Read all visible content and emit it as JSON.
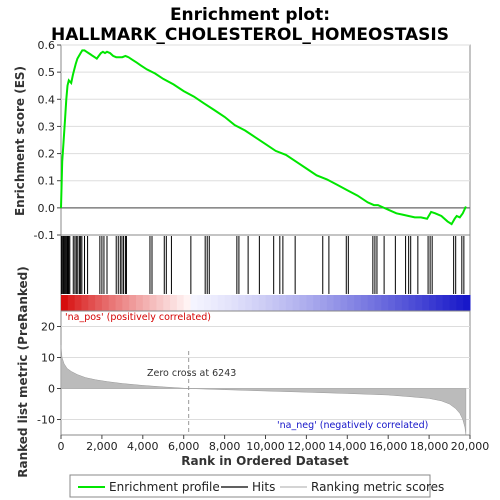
{
  "chart_data": {
    "type": "line",
    "title_line1": "Enrichment plot:",
    "title_line2": "HALLMARK_CHOLESTEROL_HOMEOSTASIS",
    "es_panel": {
      "ylabel": "Enrichment score (ES)",
      "ylim": [
        -0.1,
        0.6
      ],
      "yticks": [
        "-0.1",
        "0.0",
        "0.1",
        "0.2",
        "0.3",
        "0.4",
        "0.5",
        "0.6"
      ],
      "ytick_values": [
        -0.1,
        0.0,
        0.1,
        0.2,
        0.3,
        0.4,
        0.5,
        0.6
      ],
      "series": [
        {
          "name": "Enrichment profile",
          "color": "#00e600",
          "x": [
            0,
            60,
            120,
            200,
            260,
            320,
            380,
            500,
            580,
            650,
            720,
            800,
            880,
            960,
            1040,
            1150,
            1250,
            1350,
            1450,
            1550,
            1650,
            1750,
            1850,
            1950,
            2050,
            2150,
            2250,
            2400,
            2550,
            2700,
            2850,
            3000,
            3150,
            3300,
            3500,
            3700,
            3900,
            4200,
            4600,
            5000,
            5500,
            6000,
            6500,
            7000,
            7500,
            8000,
            8500,
            9000,
            9500,
            10000,
            10500,
            11000,
            11500,
            12000,
            12500,
            13000,
            13500,
            14000,
            14500,
            15000,
            15300,
            15500,
            15800,
            16100,
            16400,
            16700,
            17000,
            17300,
            17600,
            17900,
            18100,
            18300,
            18600,
            18900,
            19100,
            19250,
            19350,
            19500,
            19650,
            19800
          ],
          "y": [
            0.0,
            0.17,
            0.24,
            0.33,
            0.4,
            0.45,
            0.47,
            0.46,
            0.49,
            0.51,
            0.53,
            0.55,
            0.56,
            0.57,
            0.58,
            0.58,
            0.575,
            0.57,
            0.565,
            0.56,
            0.555,
            0.55,
            0.56,
            0.57,
            0.575,
            0.57,
            0.575,
            0.57,
            0.56,
            0.555,
            0.555,
            0.555,
            0.56,
            0.555,
            0.545,
            0.535,
            0.525,
            0.51,
            0.495,
            0.475,
            0.455,
            0.43,
            0.41,
            0.385,
            0.36,
            0.335,
            0.305,
            0.285,
            0.26,
            0.235,
            0.21,
            0.195,
            0.17,
            0.145,
            0.12,
            0.105,
            0.085,
            0.065,
            0.045,
            0.02,
            0.01,
            0.01,
            0.0,
            -0.01,
            -0.02,
            -0.025,
            -0.03,
            -0.035,
            -0.035,
            -0.04,
            -0.015,
            -0.02,
            -0.03,
            -0.05,
            -0.06,
            -0.04,
            -0.03,
            -0.035,
            -0.02,
            0.005
          ]
        }
      ]
    },
    "hits": {
      "name": "Hits",
      "positions": [
        20,
        60,
        110,
        150,
        200,
        250,
        300,
        340,
        380,
        430,
        600,
        680,
        750,
        820,
        900,
        960,
        1020,
        1150,
        1300,
        1900,
        2000,
        2100,
        2250,
        2700,
        2800,
        2900,
        2980,
        3060,
        3150,
        3200,
        4350,
        4450,
        5050,
        5150,
        5400,
        6350,
        7050,
        7150,
        7250,
        8600,
        8700,
        9150,
        9700,
        10400,
        10700,
        10850,
        11450,
        12800,
        13100,
        13950,
        14050,
        15250,
        15350,
        15450,
        15800,
        16350,
        16850,
        17000,
        17100,
        17450,
        17950,
        18050,
        18150,
        19200,
        19300,
        19600,
        19700
      ]
    },
    "ranking_bar": {
      "pos_label": "'na_pos' (positively correlated)",
      "neg_label": "'na_neg' (negatively correlated)",
      "pos_color": "#d40000",
      "neg_color": "#1414c8"
    },
    "metric_panel": {
      "ylabel": "Ranked list metric (PreRanked)",
      "ylim": [
        -15,
        25
      ],
      "yticks": [
        "20",
        "10",
        "0",
        "-10"
      ],
      "ytick_values": [
        20,
        10,
        0,
        -10
      ],
      "zero_cross_label": "Zero cross at 6243",
      "zero_cross": 6243,
      "fill_color": "#bbbbbb",
      "x": [
        0,
        50,
        150,
        300,
        500,
        800,
        1200,
        1700,
        2300,
        3000,
        4000,
        5000,
        6243,
        8000,
        10000,
        12000,
        14000,
        16000,
        17000,
        18000,
        18600,
        19000,
        19300,
        19500,
        19650,
        19750,
        19800
      ],
      "y": [
        14,
        10,
        8,
        6.5,
        5.5,
        4.5,
        3.5,
        2.8,
        2.2,
        1.6,
        1.0,
        0.5,
        0.0,
        -0.4,
        -0.8,
        -1.2,
        -1.6,
        -2.1,
        -2.6,
        -3.2,
        -4.0,
        -5.0,
        -6.5,
        -8.0,
        -10.0,
        -12.5,
        -15.0
      ]
    },
    "x_axis": {
      "label": "Rank in Ordered Dataset",
      "xlim": [
        0,
        20000
      ],
      "ticks": [
        "0",
        "2,000",
        "4,000",
        "6,000",
        "8,000",
        "10,000",
        "12,000",
        "14,000",
        "16,000",
        "18,000",
        "20,000"
      ],
      "tick_values": [
        0,
        2000,
        4000,
        6000,
        8000,
        10000,
        12000,
        14000,
        16000,
        18000,
        20000
      ]
    },
    "legend": [
      {
        "label": "Enrichment profile",
        "color": "#00e600"
      },
      {
        "label": "Hits",
        "color": "#000000"
      },
      {
        "label": "Ranking metric scores",
        "color": "#bbbbbb"
      }
    ]
  }
}
